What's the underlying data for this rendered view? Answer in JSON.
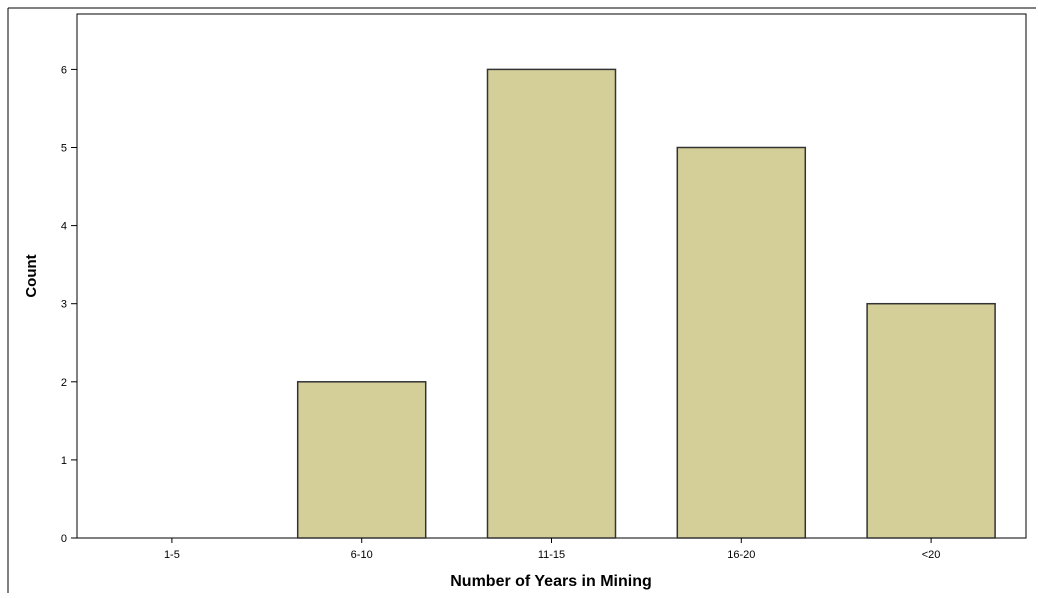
{
  "chart_data": {
    "type": "bar",
    "categories": [
      "1-5",
      "6-10",
      "11-15",
      "16-20",
      "<20"
    ],
    "values": [
      0,
      2,
      6,
      5,
      3
    ],
    "title": "",
    "xlabel": "Number of Years in Mining",
    "ylabel": "Count",
    "ylim": [
      0,
      6.6
    ],
    "yticks": [
      0,
      1,
      2,
      3,
      4,
      5,
      6
    ],
    "grid": false,
    "legend": "none",
    "colors": {
      "bar_fill": "#d4cf99",
      "bar_stroke": "#333333",
      "axis": "#000000",
      "frame": "#000000"
    }
  }
}
